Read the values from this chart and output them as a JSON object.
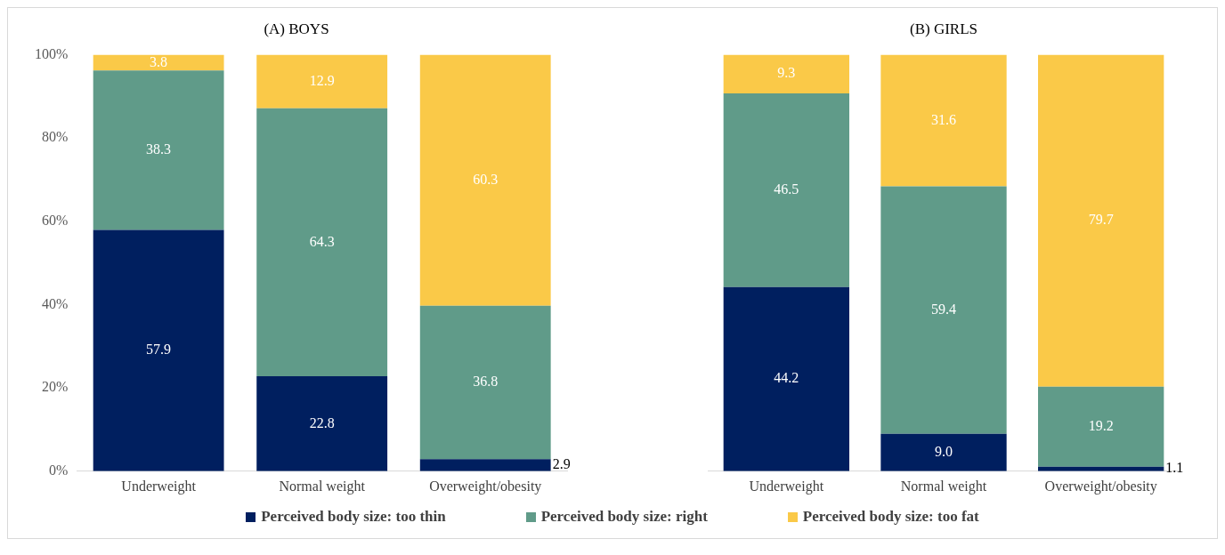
{
  "chart_data": [
    {
      "type": "bar",
      "title": "(A) BOYS",
      "categories": [
        "Underweight",
        "Normal weight",
        "Overweight/obesity"
      ],
      "stacked": true,
      "legend": "bottom",
      "ylim": [
        0,
        100
      ],
      "yticks": [
        {
          "value": 0,
          "label": "0%"
        },
        {
          "value": 20,
          "label": "20%"
        },
        {
          "value": 40,
          "label": "40%"
        },
        {
          "value": 60,
          "label": "60%"
        },
        {
          "value": 80,
          "label": "80%"
        },
        {
          "value": 100,
          "label": "100%"
        }
      ],
      "series": [
        {
          "name": "Perceived body size: too thin",
          "color": "#001f5f",
          "values": [
            57.9,
            22.8,
            2.9
          ],
          "value_labels": [
            "57.9",
            "22.8",
            "2.9"
          ]
        },
        {
          "name": "Perceived body size: right",
          "color": "#609b89",
          "values": [
            38.3,
            64.3,
            36.8
          ],
          "value_labels": [
            "38.3",
            "64.3",
            "36.8"
          ]
        },
        {
          "name": "Perceived body size: too fat",
          "color": "#fac948",
          "values": [
            3.8,
            12.9,
            60.3
          ],
          "value_labels": [
            "3.8",
            "12.9",
            "60.3"
          ]
        }
      ]
    },
    {
      "type": "bar",
      "title": "(B) GIRLS",
      "categories": [
        "Underweight",
        "Normal weight",
        "Overweight/obesity"
      ],
      "stacked": true,
      "tick_labels": "x",
      "ylim": [
        0,
        100
      ],
      "series": [
        {
          "color": "#001f5f",
          "values": [
            44.2,
            9.0,
            1.1
          ],
          "value_labels": [
            "44.2",
            "9.0",
            "1.1"
          ]
        },
        {
          "color": "#609b89",
          "values": [
            46.5,
            59.4,
            19.2
          ],
          "value_labels": [
            "46.5",
            "59.4",
            "19.2"
          ]
        },
        {
          "color": "#fac948",
          "values": [
            9.3,
            31.6,
            79.7
          ],
          "value_labels": [
            "9.3",
            "31.6",
            "79.7"
          ]
        }
      ]
    }
  ]
}
